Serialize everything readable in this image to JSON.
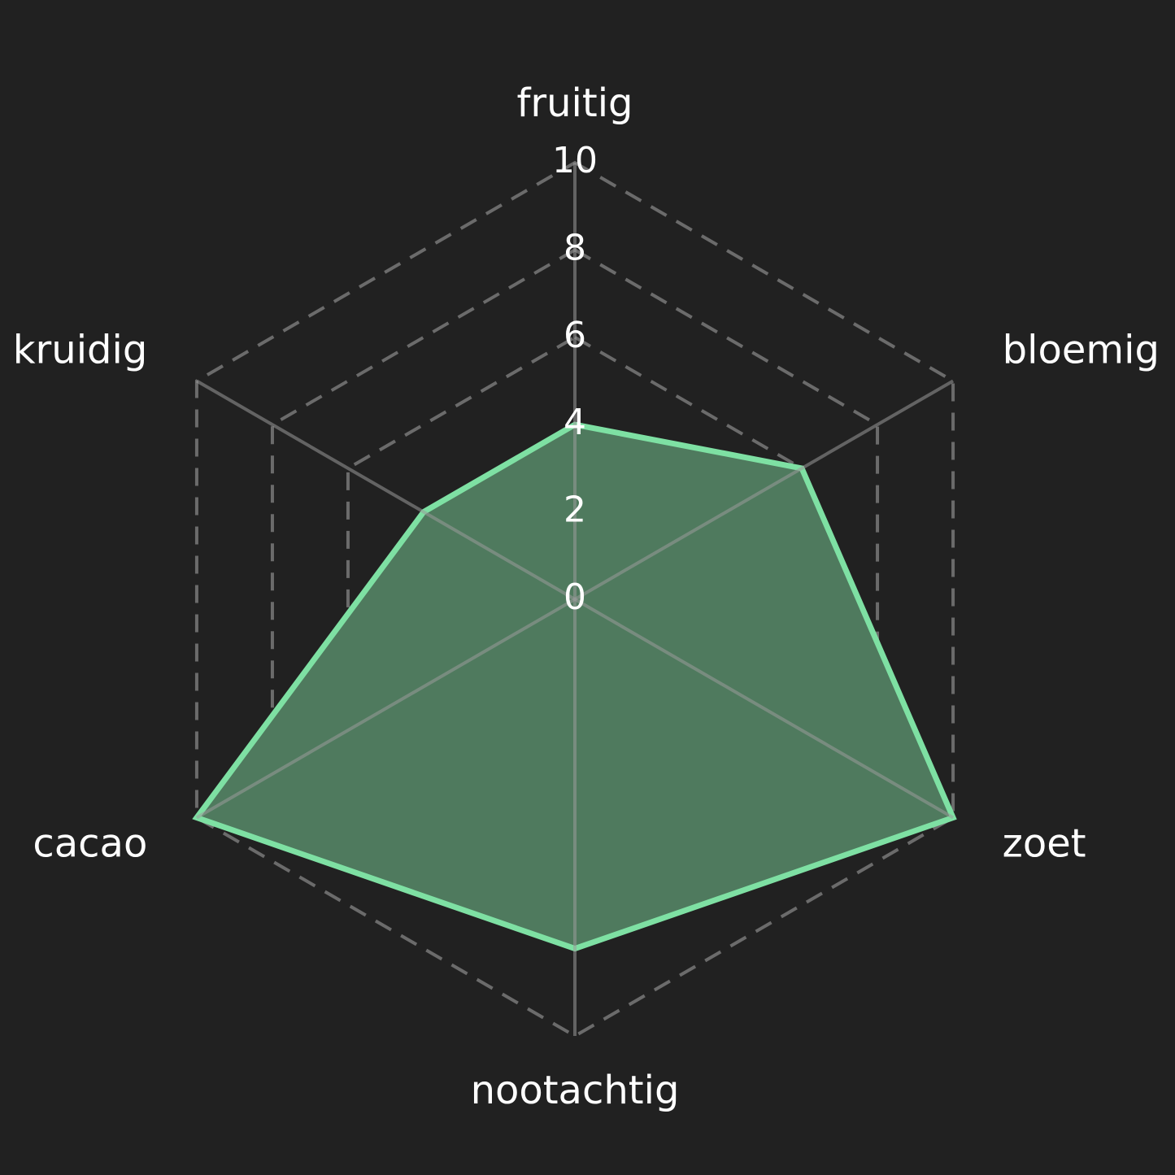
{
  "chart_data": {
    "type": "radar",
    "categories": [
      "fruitig",
      "bloemig",
      "zoet",
      "nootachtig",
      "cacao",
      "kruidig"
    ],
    "series": [
      {
        "values": [
          4,
          6,
          10,
          8,
          10,
          4
        ]
      }
    ],
    "rlim": [
      0,
      10
    ],
    "rticks": [
      "0",
      "2",
      "4",
      "6",
      "8",
      "10"
    ],
    "grid": true,
    "colors": {
      "background": "#212121",
      "grid": "#6b6b6b",
      "series_line": "#7ee0a3",
      "series_fill": "#4f7a5e",
      "text": "#ffffff"
    }
  }
}
